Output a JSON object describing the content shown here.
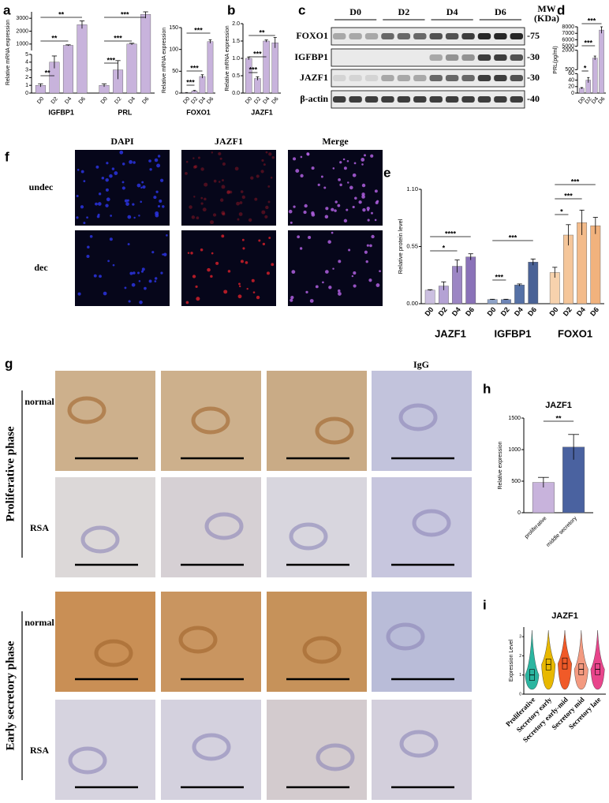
{
  "panels": [
    "a",
    "b",
    "c",
    "d",
    "e",
    "f",
    "g",
    "h",
    "i"
  ],
  "chart_data": [
    {
      "type": "bar",
      "ylabel": "Relative mRNA expression",
      "categories": [
        "D0",
        "D2",
        "D4",
        "D6"
      ],
      "ysegments": [
        {
          "ylim": [
            0,
            5
          ],
          "yticks": [
            0,
            1,
            2,
            3,
            4,
            5
          ]
        },
        {
          "ylim": [
            500,
            3500
          ],
          "yticks": [
            1000,
            2000,
            3000
          ]
        }
      ],
      "series": [
        {
          "name": "IGFBP1",
          "color": "#c8b3dc",
          "values": [
            1,
            4,
            900,
            2500
          ],
          "errors": [
            0.2,
            0.8,
            40,
            300
          ]
        },
        {
          "name": "PRL",
          "color": "#c8b3dc",
          "values": [
            1,
            3,
            1000,
            3300
          ],
          "errors": [
            0.2,
            1.2,
            60,
            300
          ]
        }
      ],
      "annotations": [
        "**",
        "**",
        "**",
        "***",
        "***",
        "***"
      ]
    },
    {
      "type": "bar",
      "ylabel": "Relative mRNA expression",
      "categories": [
        "D0",
        "D2",
        "D4",
        "D6"
      ],
      "ylim": [
        0,
        150
      ],
      "yticks": [
        0,
        50,
        100,
        150
      ],
      "series": [
        {
          "name": "FOXO1",
          "color": "#c8b3dc",
          "values": [
            1,
            5,
            38,
            118
          ],
          "errors": [
            0.3,
            1,
            4,
            4
          ]
        }
      ],
      "annotations": [
        "***",
        "***",
        "***"
      ]
    },
    {
      "type": "bar",
      "ylabel": "Relative mRNA expression",
      "categories": [
        "D0",
        "D2",
        "D4",
        "D6"
      ],
      "ylim": [
        0,
        2
      ],
      "yticks": [
        {
          "value": 0,
          "label": "0.0"
        },
        0.5,
        {
          "value": 1,
          "label": "1.0"
        },
        1.5,
        {
          "value": 2,
          "label": "2.0"
        }
      ],
      "series": [
        {
          "name": "JAZF1",
          "color": "#c8b3dc",
          "values": [
            1.0,
            0.42,
            1.5,
            1.45
          ],
          "errors": [
            0.04,
            0.05,
            0.03,
            0.15
          ]
        }
      ],
      "annotations": [
        "***",
        "***",
        "**"
      ]
    },
    {
      "type": "bar",
      "ylabel": "PRL(pg/ml)",
      "categories": [
        "D0",
        "D2",
        "D4",
        "D6"
      ],
      "ysegments": [
        {
          "ylim": [
            0,
            60
          ],
          "yticks": [
            0,
            20,
            40,
            60
          ]
        },
        {
          "ylim": [
            500,
            2000
          ],
          "yticks": [
            500,
            2000
          ]
        },
        {
          "ylim": [
            5000,
            8000
          ],
          "yticks": [
            5000,
            6000,
            7000,
            8000
          ]
        }
      ],
      "values": [
        15,
        40,
        1400,
        7500
      ],
      "errors": [
        2,
        8,
        150,
        500
      ],
      "color": "#c8b3dc",
      "annotations": [
        "*",
        "***",
        "***"
      ]
    },
    {
      "type": "bar",
      "ylabel": "Relative protein level",
      "categories": [
        "D0",
        "D2",
        "D4",
        "D6"
      ],
      "ylim": [
        0,
        1.1
      ],
      "yticks": [
        {
          "value": 0,
          "label": "0.00"
        },
        0.55,
        {
          "value": 1.1,
          "label": "1.10"
        }
      ],
      "series": [
        {
          "name": "JAZF1",
          "colors": [
            "#cbbfe0",
            "#b4a2d4",
            "#9c86c4",
            "#8a72b8"
          ],
          "values": [
            0.13,
            0.17,
            0.36,
            0.45
          ],
          "errors": [
            0.005,
            0.04,
            0.06,
            0.03
          ]
        },
        {
          "name": "IGFBP1",
          "colors": [
            "#8fa3c8",
            "#6f86b7",
            "#5571a6",
            "#4a6296"
          ],
          "values": [
            0.04,
            0.04,
            0.18,
            0.4
          ],
          "errors": [
            0.003,
            0.003,
            0.01,
            0.03
          ]
        },
        {
          "name": "FOXO1",
          "colors": [
            "#f7d2ad",
            "#f5c69a",
            "#f3bb8a",
            "#f1b27d"
          ],
          "values": [
            0.3,
            0.66,
            0.78,
            0.75
          ],
          "errors": [
            0.05,
            0.1,
            0.12,
            0.08
          ]
        }
      ],
      "annotations": [
        "*",
        "****",
        "***",
        "***",
        "*",
        "***",
        "***"
      ]
    },
    {
      "type": "bar",
      "title": "JAZF1",
      "ylabel": "Relative expression",
      "categories": [
        "proliferative",
        "middle secretory"
      ],
      "values": [
        480,
        1040
      ],
      "errors": [
        80,
        200
      ],
      "colors": [
        "#c8b3dc",
        "#4a62a0"
      ],
      "ylim": [
        0,
        1500
      ],
      "yticks": [
        0,
        500,
        1000,
        1500
      ],
      "annotations": [
        "**"
      ]
    },
    {
      "type": "violin",
      "title": "JAZF1",
      "ylabel": "Expression Level",
      "categories": [
        "Proliferative",
        "Secretory early",
        "Secretory early-mid",
        "Secretory mid",
        "Secretory late"
      ],
      "values": [
        1.0,
        1.55,
        1.6,
        1.3,
        1.3
      ],
      "colors": [
        "#2bb5a0",
        "#e8b800",
        "#f05a28",
        "#f39a80",
        "#e8458b"
      ],
      "ylim": [
        0,
        3.5
      ],
      "yticks": [
        0,
        1,
        2,
        3
      ]
    }
  ],
  "blot": {
    "lanes": [
      "D0",
      "D2",
      "D4",
      "D6"
    ],
    "mw_title": "MW",
    "mw_unit": "(KDa)",
    "rows": [
      {
        "label": "FOXO1",
        "mw": "-75"
      },
      {
        "label": "IGFBP1",
        "mw": "-30"
      },
      {
        "label": "JAZF1",
        "mw": "-30"
      },
      {
        "label": "β-actin",
        "mw": "-40"
      }
    ]
  },
  "immunofluorescence": {
    "columns": [
      "DAPI",
      "JAZF1",
      "Merge"
    ],
    "rows": [
      "undec",
      "dec"
    ]
  },
  "ihc": {
    "column_label": "IgG",
    "phases": [
      {
        "name": "Proliferative phase",
        "rows": [
          "normal",
          "RSA"
        ]
      },
      {
        "name": "Early secretory phase",
        "rows": [
          "normal",
          "RSA"
        ]
      }
    ]
  }
}
